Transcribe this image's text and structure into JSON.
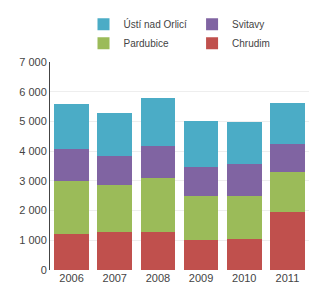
{
  "chart_data": {
    "type": "bar",
    "stacked": true,
    "categories": [
      "2006",
      "2007",
      "2008",
      "2009",
      "2010",
      "2011"
    ],
    "series": [
      {
        "name": "Chrudim",
        "color": "#c0504d",
        "values": [
          1200,
          1290,
          1280,
          1000,
          1050,
          1950
        ]
      },
      {
        "name": "Pardubice",
        "color": "#9bbb59",
        "values": [
          1780,
          1560,
          1800,
          1500,
          1450,
          1350
        ]
      },
      {
        "name": "Svitavy",
        "color": "#8064a2",
        "values": [
          1100,
          1000,
          1100,
          980,
          1060,
          950
        ]
      },
      {
        "name": "Ústí nad Orlicí",
        "color": "#4bacc6",
        "values": [
          1520,
          1450,
          1620,
          1520,
          1430,
          1360
        ]
      }
    ],
    "ylim": [
      0,
      7000
    ],
    "yticks": [
      0,
      {
        "value": 1000,
        "label": "1 000"
      },
      {
        "value": 2000,
        "label": "2 000"
      },
      {
        "value": 3000,
        "label": "3 000"
      },
      {
        "value": 4000,
        "label": "4 000"
      },
      {
        "value": 5000,
        "label": "5 000"
      },
      {
        "value": 6000,
        "label": "6 000"
      },
      {
        "value": 7000,
        "label": "7 000"
      }
    ],
    "grid": true,
    "legend": "top"
  }
}
